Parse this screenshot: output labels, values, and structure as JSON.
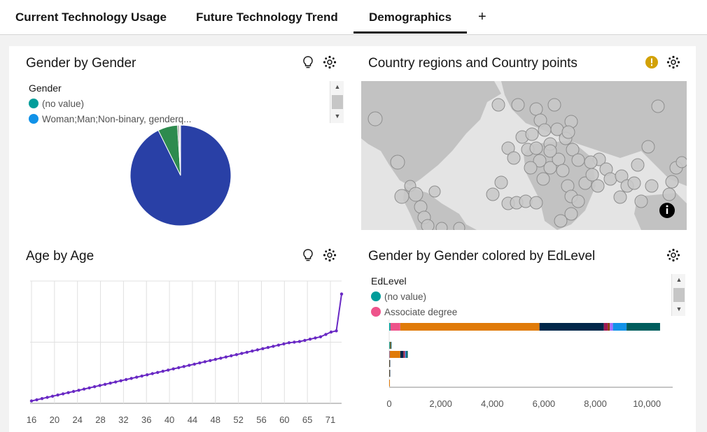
{
  "tabs": [
    {
      "label": "Current Technology Usage",
      "active": false
    },
    {
      "label": "Future Technology Trend",
      "active": false
    },
    {
      "label": "Demographics",
      "active": true
    }
  ],
  "add_tab_label": "+",
  "widgets": {
    "gender_pie": {
      "title": "Gender by Gender",
      "icons": [
        "lightbulb-icon",
        "settings-icon"
      ],
      "legend": {
        "title": "Gender",
        "items": [
          {
            "label": "(no value)",
            "color": "#009d9a"
          },
          {
            "label": "Woman;Man;Non-binary, genderq...",
            "color": "#1192e8"
          }
        ]
      }
    },
    "map": {
      "title": "Country regions and Country points",
      "icons": [
        "warning-icon",
        "settings-icon",
        "info-icon"
      ],
      "warning_color": "#d2a106"
    },
    "age_line": {
      "title": "Age by Age",
      "icons": [
        "lightbulb-icon",
        "settings-icon"
      ]
    },
    "gender_edlevel": {
      "title": "Gender by Gender colored by EdLevel",
      "icons": [
        "settings-icon"
      ],
      "legend": {
        "title": "EdLevel",
        "items": [
          {
            "label": "(no value)",
            "color": "#009d9a"
          },
          {
            "label": "Associate degree",
            "color": "#ee538b"
          }
        ]
      }
    }
  },
  "chart_data": [
    {
      "type": "pie",
      "title": "Gender by Gender",
      "legend_title": "Gender",
      "slices": [
        {
          "label": "Woman;Man;Non-binary, genderq...",
          "value": 0.927,
          "color": "#2940a6"
        },
        {
          "label": "(unlabeled)",
          "value": 0.063,
          "color": "#2e8b4f"
        },
        {
          "label": "(unlabeled)",
          "value": 0.005,
          "color": "#8a8a8a"
        },
        {
          "label": "(unlabeled)",
          "value": 0.005,
          "color": "#e8e8e8"
        }
      ]
    },
    {
      "type": "line",
      "title": "Age by Age",
      "x_tick_labels": [
        "16",
        "20",
        "24",
        "28",
        "32",
        "36",
        "40",
        "44",
        "48",
        "52",
        "56",
        "60",
        "65",
        "71"
      ],
      "series": [
        {
          "color": "#6929c4",
          "values": [
            2,
            3,
            4,
            5,
            6,
            7,
            8,
            9,
            10,
            11,
            12,
            13,
            14,
            15,
            16,
            17,
            18,
            19,
            20,
            21,
            22,
            23,
            24,
            25,
            26,
            27,
            28,
            29,
            30,
            31,
            32,
            33,
            34,
            35,
            36,
            37,
            38,
            39,
            40,
            41,
            42,
            43,
            44,
            45,
            46,
            47,
            48,
            49,
            50,
            51,
            51.5,
            52,
            53,
            54,
            55,
            56,
            58,
            60,
            61,
            92
          ]
        }
      ],
      "grid": true
    },
    {
      "type": "bar",
      "orientation": "horizontal",
      "stacked": true,
      "title": "Gender by Gender colored by EdLevel",
      "legend_title": "EdLevel",
      "x_ticks": [
        0,
        2000,
        4000,
        6000,
        8000,
        10000
      ],
      "x_tick_labels": [
        "0",
        "2,000",
        "4,000",
        "6,000",
        "8,000",
        "10,000"
      ],
      "xlim": [
        0,
        11000
      ],
      "categories": [
        "",
        "",
        "",
        "",
        "",
        ""
      ],
      "series": [
        {
          "color": "#009d9a",
          "values": [
            50,
            30,
            10,
            0,
            0,
            0
          ]
        },
        {
          "color": "#ee538b",
          "values": [
            380,
            0,
            20,
            0,
            0,
            0
          ]
        },
        {
          "color": "#e07b08",
          "values": [
            5400,
            20,
            400,
            10,
            10,
            20
          ]
        },
        {
          "color": "#012749",
          "values": [
            2500,
            10,
            120,
            5,
            5,
            0
          ]
        },
        {
          "color": "#9f1853",
          "values": [
            150,
            0,
            40,
            0,
            0,
            0
          ]
        },
        {
          "color": "#8a3800",
          "values": [
            80,
            0,
            20,
            0,
            0,
            0
          ]
        },
        {
          "color": "#a56eff",
          "values": [
            120,
            0,
            20,
            0,
            0,
            0
          ]
        },
        {
          "color": "#1192e8",
          "values": [
            530,
            0,
            30,
            0,
            0,
            0
          ]
        },
        {
          "color": "#005d5d",
          "values": [
            1300,
            20,
            60,
            0,
            0,
            0
          ]
        }
      ]
    }
  ]
}
